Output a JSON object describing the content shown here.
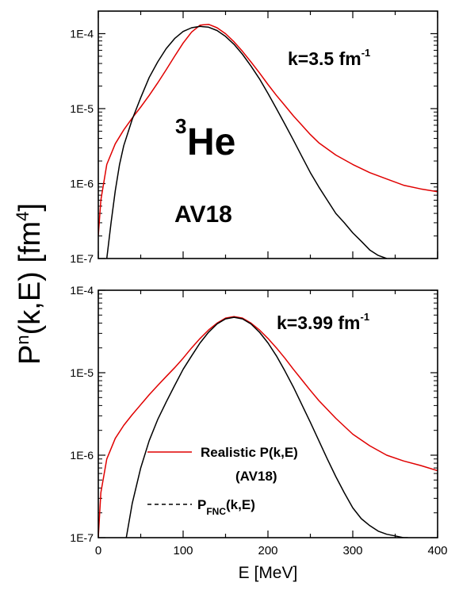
{
  "chart_data": [
    {
      "type": "line",
      "panel": "top",
      "annotation": {
        "k": "k=3.5 fm",
        "sup": "-1"
      },
      "labels": {
        "nucleus_sup": "3",
        "nucleus": "He",
        "potential": "AV18"
      },
      "xlim": [
        0,
        400
      ],
      "ylim": [
        1e-07,
        0.0002
      ],
      "yscale": "log",
      "ytick_labels": [
        "1E-7",
        "1E-6",
        "1E-5",
        "1E-4"
      ],
      "series": [
        {
          "style": "solid",
          "color": "#e00000",
          "x": [
            0,
            3,
            10,
            20,
            30,
            40,
            50,
            60,
            70,
            80,
            90,
            100,
            110,
            120,
            130,
            140,
            150,
            160,
            170,
            180,
            190,
            200,
            210,
            220,
            230,
            240,
            250,
            260,
            280,
            300,
            320,
            340,
            360,
            380,
            400
          ],
          "y": [
            2e-07,
            6e-07,
            1.8e-06,
            3.4e-06,
            5.2e-06,
            7.5e-06,
            1.05e-05,
            1.5e-05,
            2.2e-05,
            3.3e-05,
            5e-05,
            7.5e-05,
            0.000105,
            0.00013,
            0.000133,
            0.00012,
            0.0001,
            7.8e-05,
            5.8e-05,
            4.2e-05,
            3e-05,
            2.1e-05,
            1.5e-05,
            1.1e-05,
            8e-06,
            6e-06,
            4.5e-06,
            3.5e-06,
            2.4e-06,
            1.8e-06,
            1.4e-06,
            1.15e-06,
            9.5e-07,
            8.5e-07,
            7.8e-07
          ]
        },
        {
          "style": "solid",
          "color": "#000000",
          "x": [
            10,
            15,
            20,
            25,
            30,
            40,
            50,
            60,
            70,
            80,
            90,
            100,
            110,
            120,
            130,
            140,
            150,
            160,
            170,
            180,
            190,
            200,
            210,
            220,
            230,
            240,
            250,
            260,
            270,
            280,
            290,
            300,
            310,
            320,
            330,
            340
          ],
          "y": [
            1e-07,
            3e-07,
            8e-07,
            1.8e-06,
            3.2e-06,
            7.2e-06,
            1.4e-05,
            2.6e-05,
            4.2e-05,
            6.3e-05,
            8.6e-05,
            0.000107,
            0.00012,
            0.000125,
            0.000122,
            0.00011,
            9.2e-05,
            7.2e-05,
            5.3e-05,
            3.7e-05,
            2.5e-05,
            1.6e-05,
            1e-05,
            6.2e-06,
            3.8e-06,
            2.3e-06,
            1.4e-06,
            9e-07,
            6e-07,
            4e-07,
            3e-07,
            2.2e-07,
            1.7e-07,
            1.3e-07,
            1.1e-07,
            1e-07
          ]
        }
      ]
    },
    {
      "type": "line",
      "panel": "bottom",
      "annotation": {
        "k": "k=3.99 fm",
        "sup": "-1"
      },
      "xlim": [
        0,
        400
      ],
      "ylim": [
        1e-07,
        0.0001
      ],
      "yscale": "log",
      "ytick_labels": [
        "1E-7",
        "1E-6",
        "1E-5",
        "1E-4"
      ],
      "xticks": [
        0,
        100,
        200,
        300,
        400
      ],
      "xtick_labels": [
        "0",
        "100",
        "200",
        "300",
        "400"
      ],
      "series": [
        {
          "name": "Realistic P(k,E)",
          "name_line2": "(AV18)",
          "style": "solid",
          "color": "#e00000",
          "x": [
            0,
            3,
            10,
            20,
            30,
            40,
            50,
            60,
            70,
            80,
            90,
            100,
            110,
            120,
            130,
            140,
            150,
            160,
            170,
            180,
            190,
            200,
            210,
            220,
            230,
            240,
            250,
            260,
            280,
            300,
            320,
            340,
            360,
            380,
            400
          ],
          "y": [
            1e-07,
            3.5e-07,
            9e-07,
            1.6e-06,
            2.3e-06,
            3.1e-06,
            4.1e-06,
            5.4e-06,
            7e-06,
            9e-06,
            1.15e-05,
            1.5e-05,
            2e-05,
            2.6e-05,
            3.3e-05,
            4e-05,
            4.6e-05,
            4.8e-05,
            4.6e-05,
            4e-05,
            3.3e-05,
            2.6e-05,
            2e-05,
            1.5e-05,
            1.1e-05,
            8.2e-06,
            6.1e-06,
            4.6e-06,
            2.8e-06,
            1.8e-06,
            1.3e-06,
            1e-06,
            8.5e-07,
            7.5e-07,
            6.5e-07
          ]
        },
        {
          "name": "P",
          "name_sub": "FNC",
          "name_tail": "(k,E)",
          "style": "dashed",
          "color": "#000000",
          "x": [
            33,
            40,
            50,
            60,
            70,
            80,
            90,
            100,
            110,
            120,
            130,
            140,
            150,
            160,
            170,
            180,
            190,
            200,
            210,
            220,
            230,
            240,
            250,
            260,
            270,
            280,
            290,
            300,
            310,
            320,
            330,
            340,
            350,
            360,
            365
          ],
          "y": [
            1e-07,
            2.6e-07,
            7e-07,
            1.5e-06,
            2.7e-06,
            4.4e-06,
            7e-06,
            1.1e-05,
            1.6e-05,
            2.3e-05,
            3.1e-05,
            3.9e-05,
            4.5e-05,
            4.7e-05,
            4.5e-05,
            3.9e-05,
            3.1e-05,
            2.3e-05,
            1.6e-05,
            1.05e-05,
            6.7e-06,
            4.1e-06,
            2.5e-06,
            1.5e-06,
            9e-07,
            5.5e-07,
            3.5e-07,
            2.3e-07,
            1.7e-07,
            1.4e-07,
            1.2e-07,
            1.1e-07,
            1.05e-07,
            1e-07,
            1e-07
          ]
        }
      ]
    }
  ],
  "xlabel": "E  [MeV]",
  "ylabel": {
    "pre": "P",
    "sup1": "n",
    "mid": "(k,E) [fm",
    "sup2": "4",
    "post": "]"
  },
  "colors": {
    "realistic": "#e00000",
    "fnc": "#000000"
  }
}
